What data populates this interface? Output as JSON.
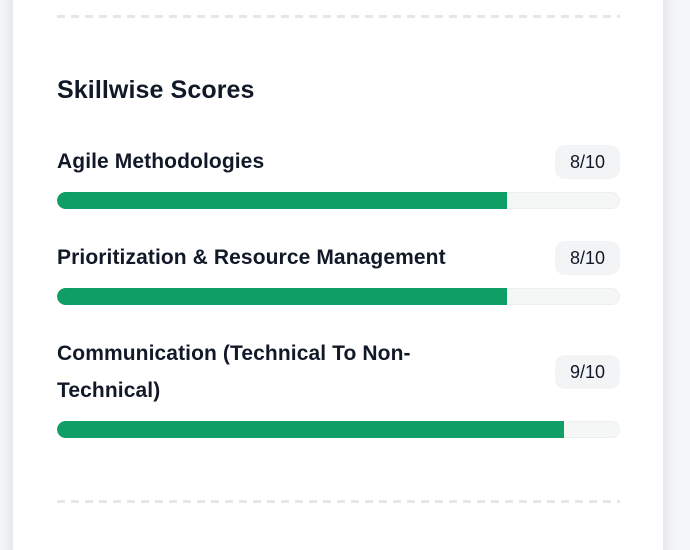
{
  "section": {
    "title": "Skillwise Scores"
  },
  "skills": {
    "items": [
      {
        "name": "Agile Methodologies",
        "score_label": "8/10",
        "percent": 80
      },
      {
        "name": "Prioritization & Resource Management",
        "score_label": "8/10",
        "percent": 80
      },
      {
        "name": "Communication (Technical To Non-Technical)",
        "score_label": "9/10",
        "percent": 90
      }
    ]
  },
  "colors": {
    "bar_fill": "#0e9e66",
    "bar_track": "#f5f6f6",
    "badge_bg": "#f3f4f6",
    "text": "#111928",
    "dash": "#e5e7eb",
    "page_bg": "#f4f6f8"
  }
}
